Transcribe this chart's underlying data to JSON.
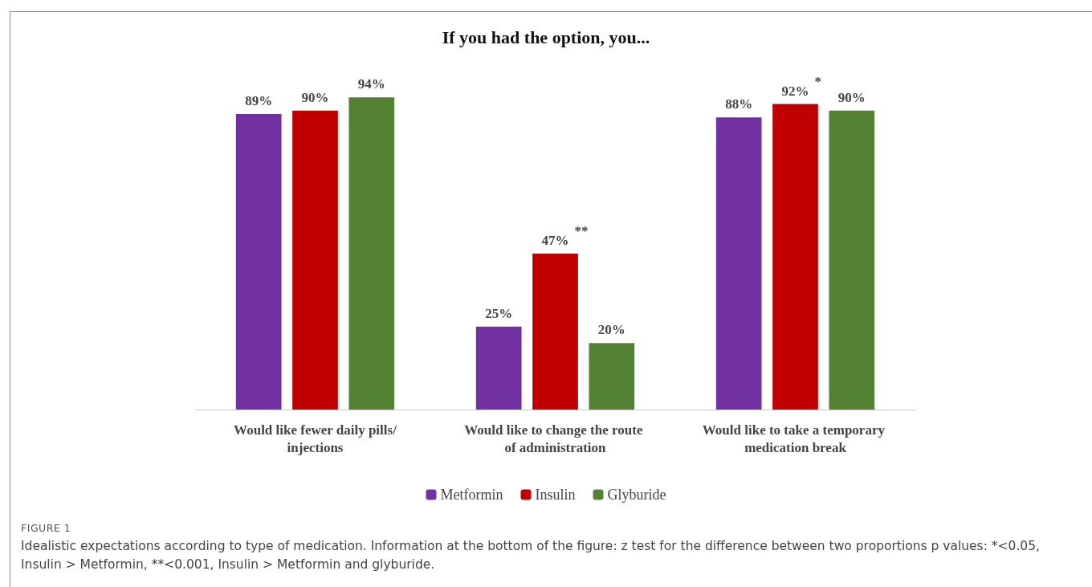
{
  "chart_data": {
    "type": "bar",
    "title": "If you had the option, you...",
    "categories": [
      "Would like fewer daily pills/injections",
      "Would like to change the route of administration",
      "Would like to take a temporary medication break"
    ],
    "series": [
      {
        "name": "Metformin",
        "color": "#7030a0",
        "values": [
          89,
          25,
          88
        ],
        "value_labels": [
          "89%",
          "25%",
          "88%"
        ]
      },
      {
        "name": "Insulin",
        "color": "#c00000",
        "values": [
          90,
          47,
          92
        ],
        "value_labels": [
          "90%",
          "47%",
          "92%"
        ]
      },
      {
        "name": "Glyburide",
        "color": "#548235",
        "values": [
          94,
          20,
          90
        ],
        "value_labels": [
          "94%",
          "20%",
          "90%"
        ]
      }
    ],
    "legend": "bottom",
    "annotations": [
      {
        "text": "**",
        "x": "Would like to change the route of administration",
        "y": 47
      },
      {
        "text": "*",
        "x": "Would like to take a temporary medication break",
        "y": 92
      },
      "FIGURE 1",
      "Idealistic expectations according to type of medication. Information at the bottom of the figure: z test for the difference between two proportions p values: *<0.05, Insulin > Metformin, **<0.001, Insulin > Metformin and glyburide."
    ]
  }
}
